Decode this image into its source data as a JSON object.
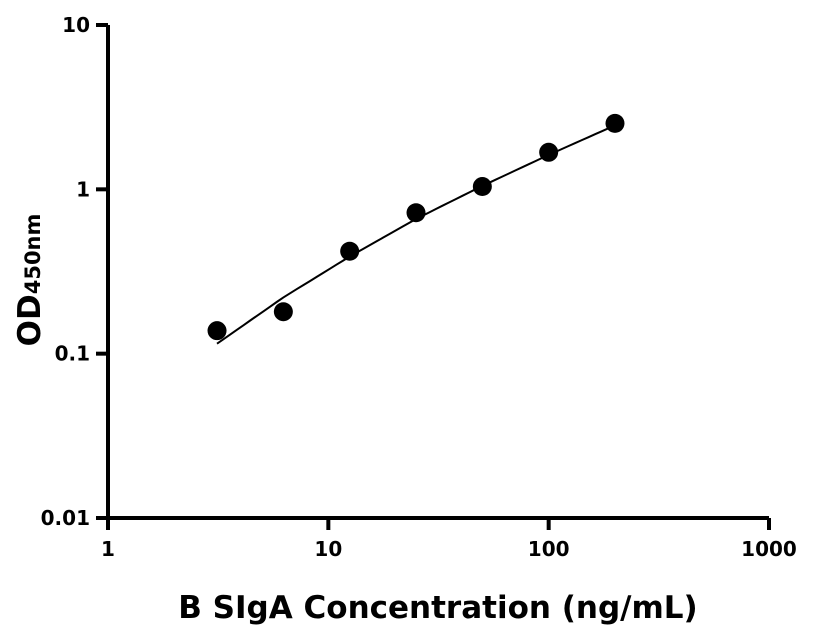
{
  "chart_data": {
    "type": "scatter",
    "title": "",
    "xlabel": "B SIgA Concentration (ng/mL)",
    "ylabel_main": "OD",
    "ylabel_sub": "450nm",
    "x_scale": "log",
    "y_scale": "log",
    "xlim": [
      1,
      1000
    ],
    "ylim": [
      0.01,
      10
    ],
    "x_ticks": [
      1,
      10,
      100,
      1000
    ],
    "x_tick_labels": [
      "1",
      "10",
      "100",
      "1000"
    ],
    "y_ticks": [
      0.01,
      0.1,
      1,
      10
    ],
    "y_tick_labels": [
      "0.01",
      "0.1",
      "1",
      "10"
    ],
    "grid": false,
    "marker_color": "#000000",
    "points": [
      {
        "x": 3.125,
        "y": 0.138
      },
      {
        "x": 6.25,
        "y": 0.18
      },
      {
        "x": 12.5,
        "y": 0.42
      },
      {
        "x": 25,
        "y": 0.72
      },
      {
        "x": 50,
        "y": 1.04
      },
      {
        "x": 100,
        "y": 1.68
      },
      {
        "x": 200,
        "y": 2.52
      }
    ],
    "fit_curve": [
      {
        "x": 3.125,
        "y": 0.115
      },
      {
        "x": 6.25,
        "y": 0.22
      },
      {
        "x": 12.5,
        "y": 0.39
      },
      {
        "x": 25,
        "y": 0.66
      },
      {
        "x": 50,
        "y": 1.05
      },
      {
        "x": 100,
        "y": 1.62
      },
      {
        "x": 200,
        "y": 2.45
      }
    ]
  }
}
